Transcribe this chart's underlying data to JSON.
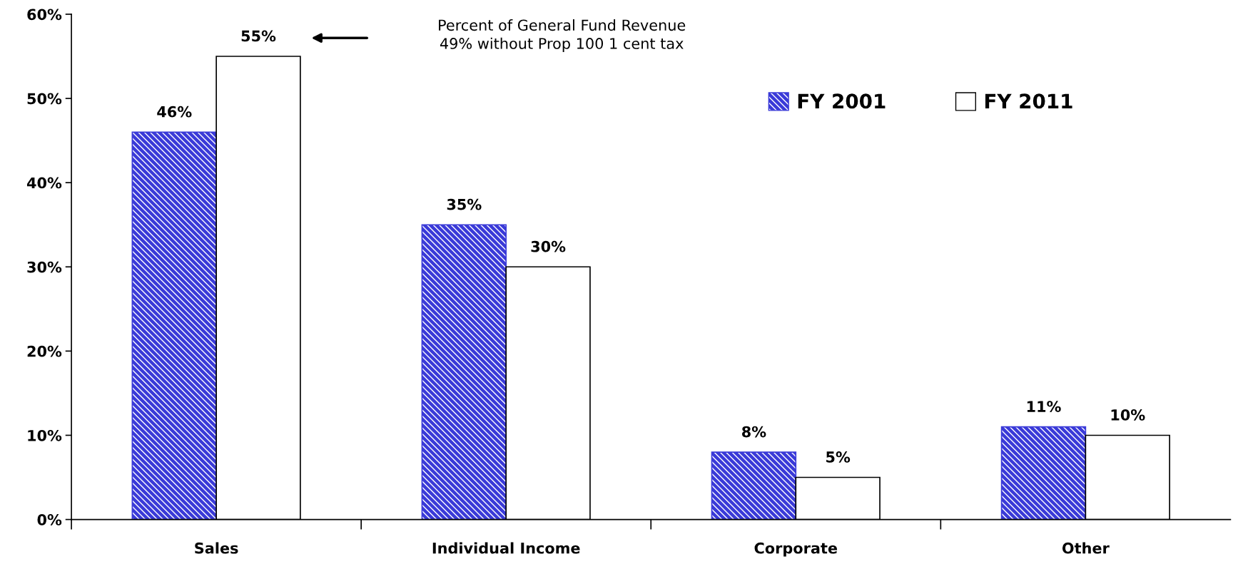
{
  "chart_data": {
    "type": "bar",
    "categories": [
      "Sales",
      "Individual Income",
      "Corporate",
      "Other"
    ],
    "series": [
      {
        "name": "FY 2001",
        "color": "#3a3ad8",
        "values": [
          46,
          35,
          8,
          11
        ],
        "value_labels": [
          "46%",
          "35%",
          "8%",
          "11%"
        ]
      },
      {
        "name": "FY 2011",
        "color": "#ffffff",
        "values": [
          55,
          30,
          5,
          10
        ],
        "value_labels": [
          "55%",
          "30%",
          "5%",
          "10%"
        ]
      }
    ],
    "ylim": [
      0,
      60
    ],
    "yticks": [
      {
        "value": 0,
        "label": "0%"
      },
      {
        "value": 10,
        "label": "10%"
      },
      {
        "value": 20,
        "label": "20%"
      },
      {
        "value": 30,
        "label": "30%"
      },
      {
        "value": 40,
        "label": "40%"
      },
      {
        "value": 50,
        "label": "50%"
      },
      {
        "value": 60,
        "label": "60%"
      }
    ],
    "annotations": [
      "Percent of General Fund Revenue\n49% without Prop 100 1 cent tax"
    ],
    "legend": "top right",
    "grid": false
  }
}
